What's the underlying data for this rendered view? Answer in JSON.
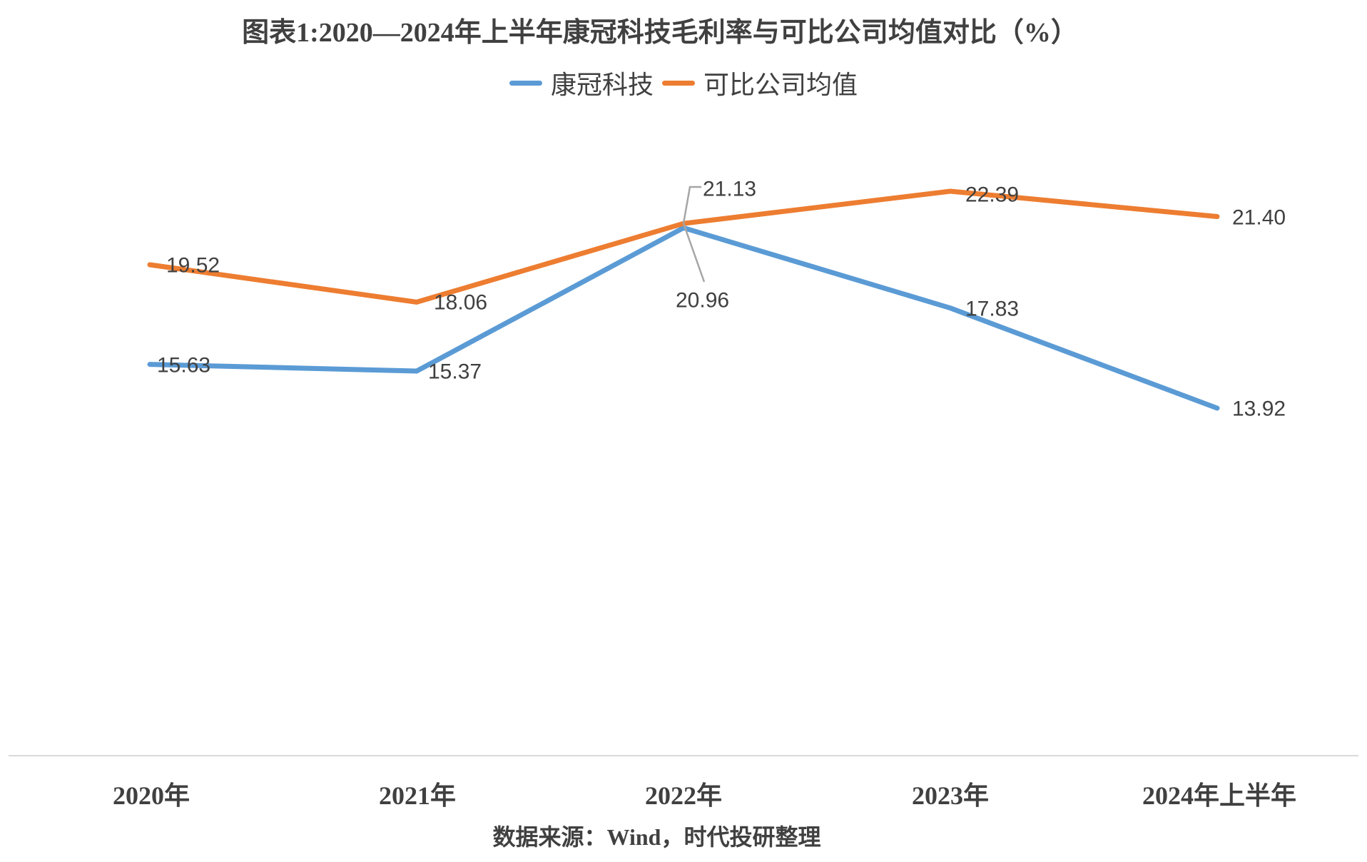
{
  "chart_data": {
    "type": "line",
    "title": "图表1:2020—2024年上半年康冠科技毛利率与可比公司均值对比（%）",
    "categories": [
      "2020年",
      "2021年",
      "2022年",
      "2023年",
      "2024年上半年"
    ],
    "series": [
      {
        "name": "康冠科技",
        "color": "#5B9BD5",
        "values": [
          15.63,
          15.37,
          20.96,
          17.83,
          13.92
        ]
      },
      {
        "name": "可比公司均值",
        "color": "#ED7D31",
        "values": [
          19.52,
          18.06,
          21.13,
          22.39,
          21.4
        ]
      }
    ],
    "value_label_decimals": 2,
    "value_labels": {
      "康冠科技": [
        "15.63",
        "15.37",
        "20.96",
        "17.83",
        "13.92"
      ],
      "可比公司均值": [
        "19.52",
        "18.06",
        "21.13",
        "22.39",
        "21.40"
      ]
    },
    "legend_position": "top-center",
    "grid": false,
    "value_axis_visible": false,
    "callout": {
      "at_category": "2022年",
      "labels": [
        "21.13",
        "20.96"
      ]
    },
    "source_note": "数据来源：Wind，时代投研整理"
  },
  "colors": {
    "series_blue": "#5B9BD5",
    "series_orange": "#ED7D31",
    "text_dark": "#404040",
    "callout_leader": "#A6A6A6",
    "axis_line": "#D9D9D9",
    "background": "#FFFFFF"
  }
}
